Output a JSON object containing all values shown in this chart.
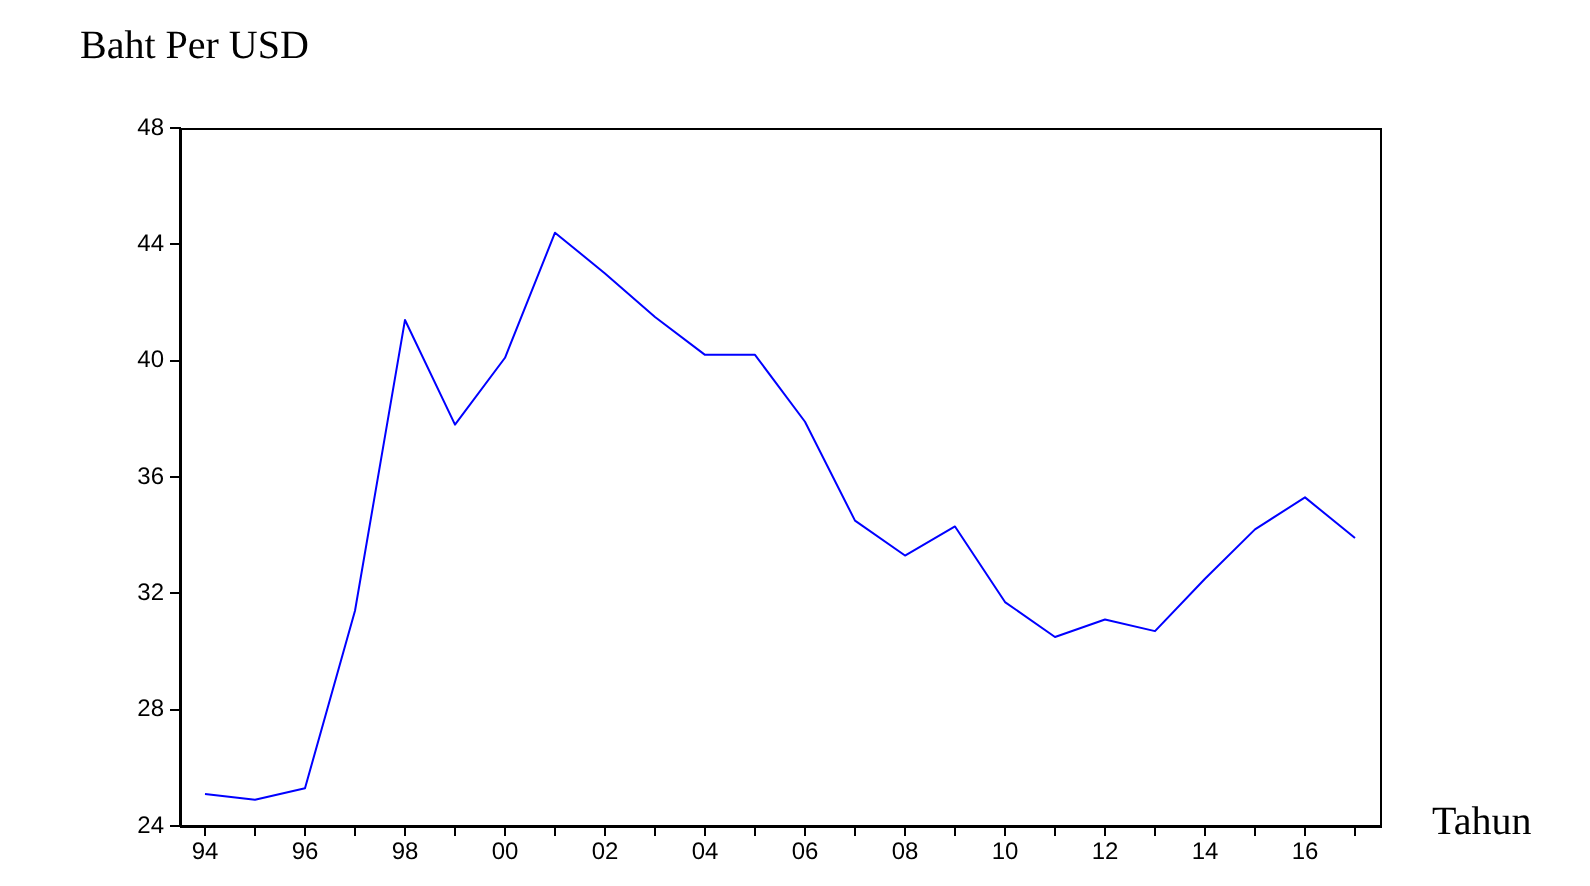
{
  "chart_data": {
    "type": "line",
    "ylabel": "Baht Per USD",
    "xlabel": "Tahun",
    "categories": [
      "94",
      null,
      "96",
      null,
      "98",
      null,
      "00",
      null,
      "02",
      null,
      "04",
      null,
      "06",
      null,
      "08",
      null,
      "10",
      null,
      "12",
      null,
      "14",
      null,
      "16",
      null
    ],
    "series": [
      {
        "color": "#0000ff",
        "values": [
          25.1,
          24.9,
          25.3,
          31.4,
          41.4,
          37.8,
          40.1,
          44.4,
          43.0,
          41.5,
          40.2,
          40.2,
          37.9,
          34.5,
          33.3,
          34.3,
          31.7,
          30.5,
          31.1,
          30.7,
          32.5,
          34.2,
          35.3,
          33.9
        ]
      }
    ],
    "ylim": [
      24,
      48
    ],
    "yticks": [
      24,
      28,
      32,
      36,
      40,
      44,
      48
    ],
    "grid": false,
    "legend": false,
    "marker": "none"
  }
}
